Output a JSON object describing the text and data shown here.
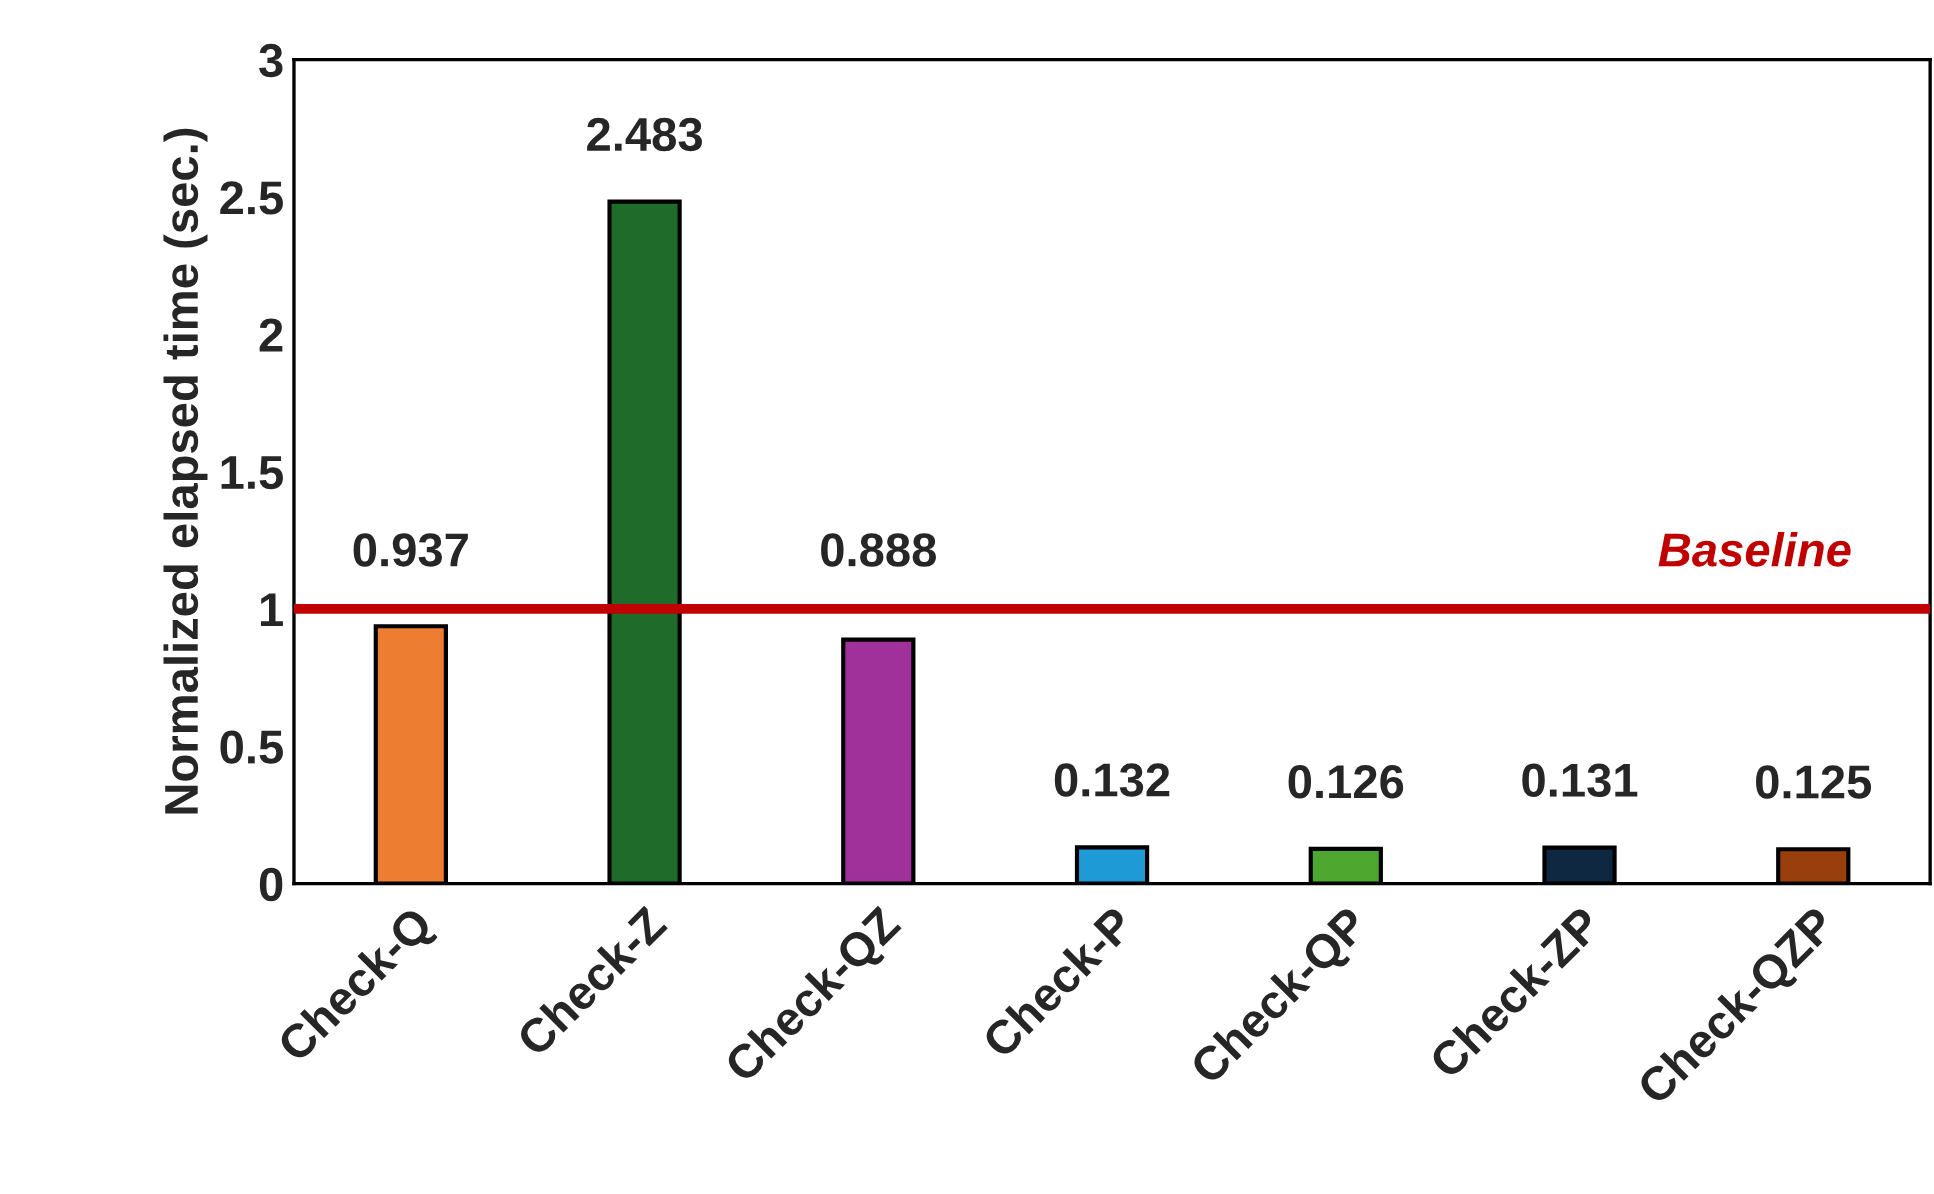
{
  "chart_data": {
    "type": "bar",
    "ylabel": "Normalized elapsed time (sec.)",
    "categories": [
      "Check-Q",
      "Check-Z",
      "Check-QZ",
      "Check-P",
      "Check-QP",
      "Check-ZP",
      "Check-QZP"
    ],
    "values": [
      0.937,
      2.483,
      0.888,
      0.132,
      0.126,
      0.131,
      0.125
    ],
    "colors": [
      "#ed7d31",
      "#1e6b2a",
      "#a0309a",
      "#1e9bd7",
      "#4ea72e",
      "#0e2841",
      "#993f0c"
    ],
    "ylim": [
      0,
      3
    ],
    "yticks": [
      0,
      0.5,
      1,
      1.5,
      2,
      2.5,
      3
    ],
    "data_labels": true,
    "ref_lines": [
      {
        "axis": "y",
        "value": 1,
        "label": "Baseline",
        "color": "#c00000"
      }
    ],
    "grid": false,
    "legend": false
  }
}
